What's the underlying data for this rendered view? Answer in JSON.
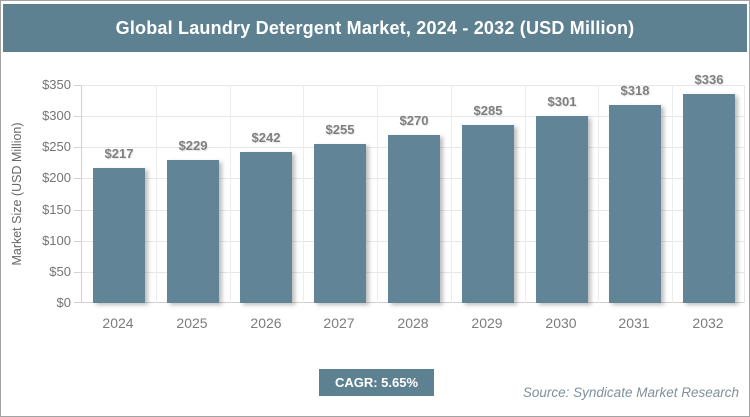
{
  "header": {
    "title": "Global Laundry Detergent Market, 2024 - 2032 (USD Million)"
  },
  "chart_data": {
    "type": "bar",
    "title": "Global Laundry Detergent Market, 2024 - 2032 (USD Million)",
    "categories": [
      "2024",
      "2025",
      "2026",
      "2027",
      "2028",
      "2029",
      "2030",
      "2031",
      "2032"
    ],
    "values": [
      217,
      229,
      242,
      255,
      270,
      285,
      301,
      318,
      336
    ],
    "value_labels": [
      "$217",
      "$229",
      "$242",
      "$255",
      "$270",
      "$285",
      "$301",
      "$318",
      "$336"
    ],
    "xlabel": "",
    "ylabel": "Market Size (USD Million)",
    "ylim": [
      0,
      350
    ],
    "ytick_step": 50,
    "ytick_labels": [
      "$0",
      "$50",
      "$100",
      "$150",
      "$200",
      "$250",
      "$300",
      "$350"
    ],
    "grid": true,
    "legend": false,
    "bar_color": "#618496"
  },
  "footer": {
    "cagr_label": "CAGR: 5.65%",
    "source": "Source: Syndicate Market Research"
  },
  "colors": {
    "accent": "#5e8192",
    "bar": "#618496",
    "gridline": "#e7e7e7",
    "axis_line": "#d2d2d2",
    "tick_text": "#757575",
    "value_text": "#7f7f7f",
    "source_text": "#7e909b"
  }
}
